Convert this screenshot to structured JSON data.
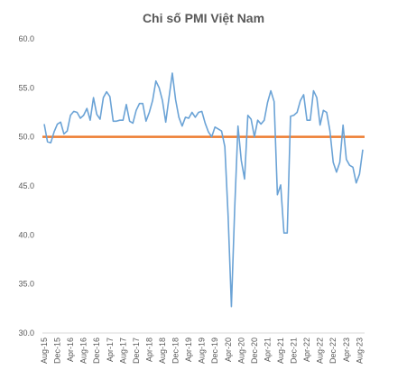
{
  "chart_data": {
    "type": "line",
    "title": "Chi số PMI Việt Nam",
    "xlabel": "",
    "ylabel": "",
    "ylim": [
      30.0,
      60.0
    ],
    "yticks": [
      "60.0",
      "55.0",
      "50.0",
      "45.0",
      "40.0",
      "35.0",
      "30.0"
    ],
    "x_tick_labels": [
      "Aug-15",
      "Dec-15",
      "Apr-16",
      "Aug-16",
      "Dec-16",
      "Apr-17",
      "Aug-17",
      "Dec-17",
      "Apr-18",
      "Aug-18",
      "Dec-18",
      "Apr-19",
      "Aug-19",
      "Dec-19",
      "Apr-20",
      "Aug-20",
      "Dec-20",
      "Apr-21",
      "Aug-21",
      "Dec-21",
      "Apr-22",
      "Aug-22",
      "Dec-22",
      "Apr-23",
      "Aug-23"
    ],
    "grid": false,
    "legend": "none",
    "reference_line": {
      "value": 50.0,
      "color": "#ED7D31"
    },
    "series_color": "#6BA3D6",
    "series": [
      {
        "values": [
          51.3,
          49.5,
          49.4,
          50.5,
          51.3,
          51.5,
          50.3,
          50.6,
          52.2,
          52.6,
          52.5,
          51.9,
          52.2,
          52.9,
          51.7,
          54.0,
          52.3,
          51.8,
          54.0,
          54.6,
          54.1,
          51.6,
          51.6,
          51.7,
          51.7,
          53.3,
          51.6,
          51.4,
          52.7,
          53.4,
          53.4,
          51.6,
          52.5,
          53.7,
          55.7,
          55.0,
          53.7,
          51.5,
          54.0,
          56.5,
          53.8,
          52.0,
          51.1,
          52.0,
          51.9,
          52.5,
          52.0,
          52.5,
          52.6,
          51.4,
          50.5,
          50.0,
          51.0,
          50.8,
          50.6,
          49.0,
          41.9,
          32.7,
          42.7,
          51.1,
          47.6,
          45.7,
          52.2,
          51.8,
          50.0,
          51.7,
          51.3,
          51.7,
          53.5,
          54.7,
          53.6,
          44.1,
          45.1,
          40.2,
          40.2,
          52.1,
          52.2,
          52.5,
          53.7,
          54.3,
          51.7,
          51.7,
          54.7,
          54.0,
          51.2,
          52.7,
          52.5,
          50.6,
          47.4,
          46.4,
          47.4,
          51.2,
          47.7,
          47.1,
          46.9,
          45.3,
          46.2,
          48.7
        ]
      }
    ]
  }
}
